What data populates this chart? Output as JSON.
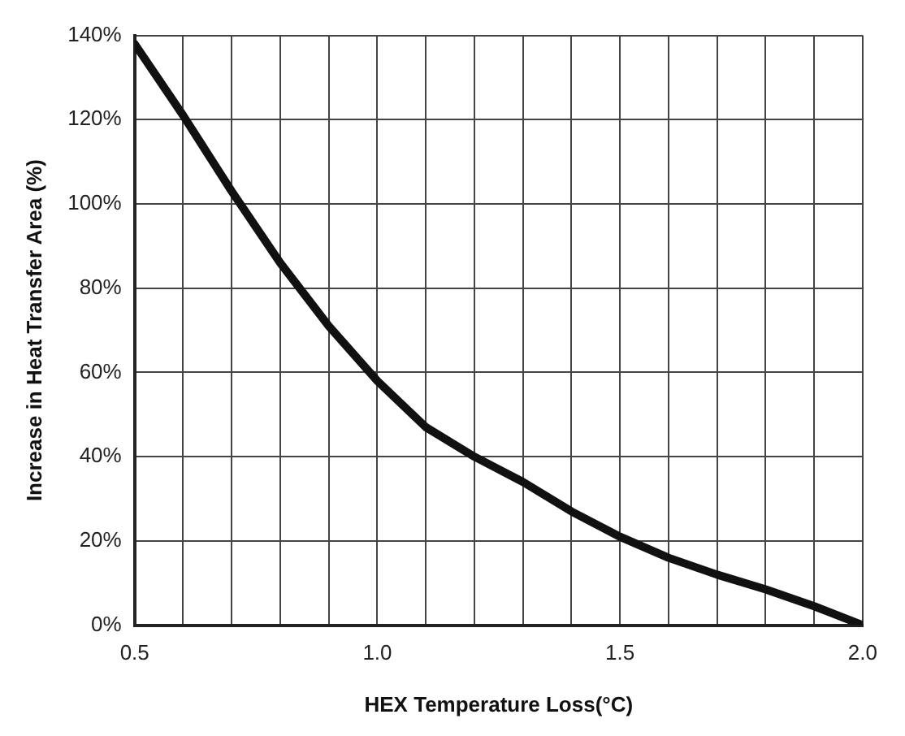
{
  "chart_data": {
    "type": "line",
    "xlabel": "HEX Temperature Loss(°C)",
    "ylabel": "Increase in Heat Transfer Area (%)",
    "x": [
      0.5,
      0.6,
      0.7,
      0.8,
      0.9,
      1.0,
      1.1,
      1.2,
      1.3,
      1.4,
      1.5,
      1.6,
      1.7,
      1.8,
      1.9,
      2.0
    ],
    "series": [
      {
        "color": "#111111",
        "values": [
          138,
          121,
          103,
          86,
          71,
          58,
          47,
          40,
          34,
          27,
          21,
          16,
          12,
          8.5,
          4.5,
          0
        ]
      }
    ],
    "xlim": [
      0.5,
      2.0
    ],
    "xticks": [
      0.5,
      {
        "value": 0.6,
        "label": null
      },
      {
        "value": 0.7,
        "label": null
      },
      {
        "value": 0.8,
        "label": null
      },
      {
        "value": 0.9,
        "label": null
      },
      {
        "value": 1.0,
        "label": "1.0"
      },
      {
        "value": 1.1,
        "label": null
      },
      {
        "value": 1.2,
        "label": null
      },
      {
        "value": 1.3,
        "label": null
      },
      {
        "value": 1.4,
        "label": null
      },
      1.5,
      {
        "value": 1.6,
        "label": null
      },
      {
        "value": 1.7,
        "label": null
      },
      {
        "value": 1.8,
        "label": null
      },
      {
        "value": 1.9,
        "label": null
      },
      {
        "value": 2.0,
        "label": "2.0"
      }
    ],
    "ylim": [
      0,
      140
    ],
    "yticks": [
      {
        "value": 0,
        "label": "0%"
      },
      {
        "value": 20,
        "label": "20%"
      },
      {
        "value": 40,
        "label": "40%"
      },
      {
        "value": 60,
        "label": "60%"
      },
      {
        "value": 80,
        "label": "80%"
      },
      {
        "value": 100,
        "label": "100%"
      },
      {
        "value": 120,
        "label": "120%"
      },
      {
        "value": 140,
        "label": "140%"
      }
    ],
    "grid": true,
    "marker": "none",
    "line_style": "solid",
    "legend": false
  }
}
